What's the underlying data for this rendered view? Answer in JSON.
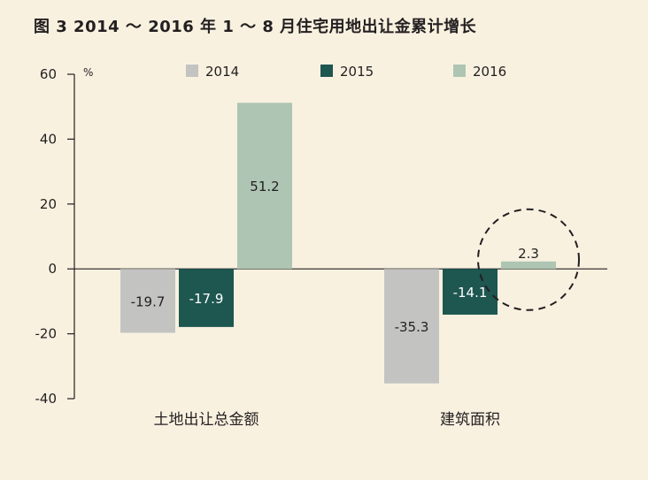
{
  "title": "图 3  2014 ～ 2016 年 1 ～ 8 月住宅用地出让金累计增长",
  "chart_data": {
    "type": "bar",
    "categories": [
      "土地出让总金额",
      "建筑面积"
    ],
    "series": [
      {
        "name": "2014",
        "values": [
          -19.7,
          -35.3
        ],
        "color": "#c3c4c1",
        "label_color": "#231f20"
      },
      {
        "name": "2015",
        "values": [
          -17.9,
          -14.1
        ],
        "color": "#1e5650",
        "label_color": "#ffffff"
      },
      {
        "name": "2016",
        "values": [
          51.2,
          2.3
        ],
        "color": "#adc5b2",
        "label_color": "#231f20"
      }
    ],
    "ylabel": "%",
    "ylim": [
      -40,
      60
    ],
    "yticks": [
      -40,
      -20,
      0,
      20,
      40,
      60
    ],
    "grid": false,
    "legend_position": "top",
    "highlight": {
      "category_index": 1,
      "series_index": 2,
      "shape": "dashed-circle"
    }
  }
}
